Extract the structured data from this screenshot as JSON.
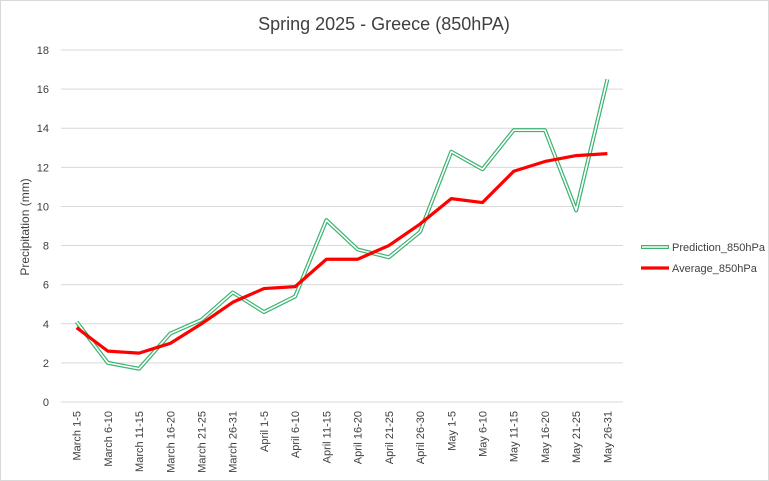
{
  "chart_data": {
    "type": "line",
    "title": "Spring 2025 - Greece (850hPA)",
    "xlabel": "",
    "ylabel": "Precipitation (mm)",
    "ylim": [
      0,
      18
    ],
    "yticks": [
      0,
      2,
      4,
      6,
      8,
      10,
      12,
      14,
      16,
      18
    ],
    "grid": true,
    "legend_position": "right",
    "categories": [
      "March 1-5",
      "March 6-10",
      "March 11-15",
      "March 16-20",
      "March 21-25",
      "March 26-31",
      "April 1-5",
      "April 6-10",
      "April 11-15",
      "April 16-20",
      "April 21-25",
      "April 26-30",
      "May 1-5",
      "May 6-10",
      "May 11-15",
      "May 16-20",
      "May 21-25",
      "May 26-31"
    ],
    "series": [
      {
        "name": "Prediction_850hPa",
        "color": "#3cb371",
        "style": "double-line",
        "values": [
          4.1,
          2.0,
          1.7,
          3.5,
          4.2,
          5.6,
          4.6,
          5.4,
          9.3,
          7.8,
          7.4,
          8.7,
          12.8,
          11.9,
          13.9,
          13.9,
          9.8,
          16.5
        ]
      },
      {
        "name": "Average_850hPa",
        "color": "#ff0000",
        "style": "solid",
        "values": [
          3.8,
          2.6,
          2.5,
          3.0,
          4.0,
          5.1,
          5.8,
          5.9,
          7.3,
          7.3,
          8.0,
          9.1,
          10.4,
          10.2,
          11.8,
          12.3,
          12.6,
          12.7
        ]
      }
    ]
  }
}
